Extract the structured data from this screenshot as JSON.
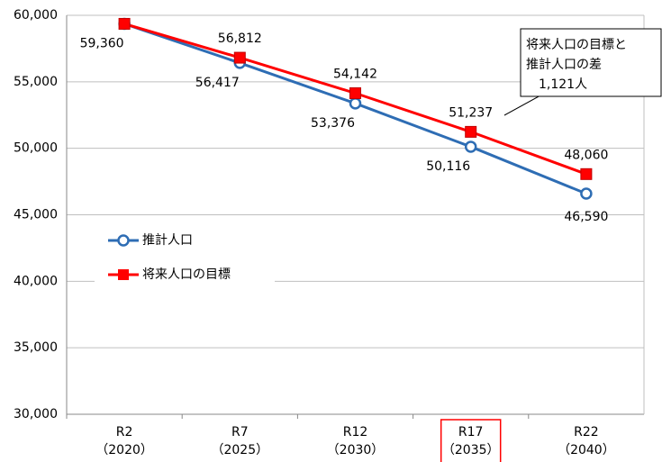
{
  "chart_data": {
    "type": "line",
    "categories": [
      [
        "R2",
        "（2020）"
      ],
      [
        "R7",
        "（2025）"
      ],
      [
        "R12",
        "（2030）"
      ],
      [
        "R17",
        "（2035）"
      ],
      [
        "R22",
        "（2040）"
      ]
    ],
    "highlight_index": 3,
    "highlight_color": "#ff0000",
    "series": [
      {
        "name": "推計人口",
        "color": "#2e6db4",
        "marker": "circle",
        "values": [
          59360,
          56417,
          53376,
          50116,
          46590
        ],
        "value_labels": [
          "59,360",
          "56,417",
          "53,376",
          "50,116",
          "46,590"
        ]
      },
      {
        "name": "将来人口の目標",
        "color": "#ff0000",
        "marker": "square",
        "values": [
          59360,
          56812,
          54142,
          51237,
          48060
        ],
        "value_labels": [
          null,
          "56,812",
          "54,142",
          "51,237",
          "48,060"
        ]
      }
    ],
    "ylim": [
      30000,
      60000
    ],
    "yticks": [
      {
        "value": 30000,
        "label": "30,000"
      },
      {
        "value": 35000,
        "label": "35,000"
      },
      {
        "value": 40000,
        "label": "40,000"
      },
      {
        "value": 45000,
        "label": "45,000"
      },
      {
        "value": 50000,
        "label": "50,000"
      },
      {
        "value": 55000,
        "label": "55,000"
      },
      {
        "value": 60000,
        "label": "60,000"
      }
    ],
    "grid": true,
    "legend": "center-left",
    "annotation": [
      "将来人口の目標と",
      "推計人口の差",
      "1,121人"
    ]
  }
}
